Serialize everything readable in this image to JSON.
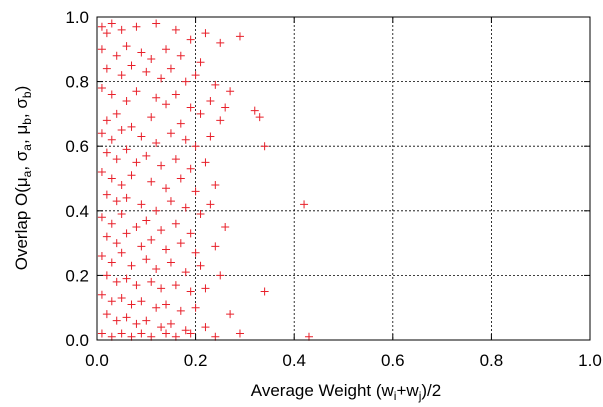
{
  "chart_data": {
    "type": "scatter",
    "title": "",
    "xlabel": {
      "pre": "Average Weight (w",
      "sub1": "i",
      "mid": "+w",
      "sub2": "j",
      "post": ")/2"
    },
    "ylabel": {
      "pre": "Overlap O(",
      "mu": "μ",
      "sub_a": "a",
      "sigma": "σ",
      "sub_b": "b",
      "sep": ", ",
      "post": ")"
    },
    "xlim": [
      0,
      1
    ],
    "ylim": [
      0,
      1
    ],
    "xticks": [
      0.0,
      0.2,
      0.4,
      0.6,
      0.8,
      1.0
    ],
    "yticks": [
      0.0,
      0.2,
      0.4,
      0.6,
      0.8,
      1.0
    ],
    "grid": true,
    "marker": "+",
    "color": "#e8202a",
    "series": [
      {
        "name": "",
        "points": [
          [
            0.01,
            0.97
          ],
          [
            0.02,
            0.95
          ],
          [
            0.03,
            0.98
          ],
          [
            0.05,
            0.96
          ],
          [
            0.08,
            0.97
          ],
          [
            0.12,
            0.98
          ],
          [
            0.16,
            0.96
          ],
          [
            0.19,
            0.93
          ],
          [
            0.22,
            0.95
          ],
          [
            0.25,
            0.92
          ],
          [
            0.29,
            0.94
          ],
          [
            0.01,
            0.9
          ],
          [
            0.04,
            0.88
          ],
          [
            0.06,
            0.91
          ],
          [
            0.09,
            0.89
          ],
          [
            0.11,
            0.87
          ],
          [
            0.14,
            0.9
          ],
          [
            0.17,
            0.88
          ],
          [
            0.21,
            0.86
          ],
          [
            0.02,
            0.84
          ],
          [
            0.05,
            0.82
          ],
          [
            0.07,
            0.85
          ],
          [
            0.1,
            0.83
          ],
          [
            0.13,
            0.81
          ],
          [
            0.15,
            0.84
          ],
          [
            0.18,
            0.8
          ],
          [
            0.2,
            0.82
          ],
          [
            0.24,
            0.79
          ],
          [
            0.27,
            0.77
          ],
          [
            0.01,
            0.78
          ],
          [
            0.03,
            0.76
          ],
          [
            0.06,
            0.74
          ],
          [
            0.08,
            0.77
          ],
          [
            0.12,
            0.75
          ],
          [
            0.14,
            0.73
          ],
          [
            0.16,
            0.76
          ],
          [
            0.19,
            0.72
          ],
          [
            0.23,
            0.74
          ],
          [
            0.26,
            0.72
          ],
          [
            0.32,
            0.71
          ],
          [
            0.33,
            0.69
          ],
          [
            0.25,
            0.68
          ],
          [
            0.21,
            0.7
          ],
          [
            0.17,
            0.67
          ],
          [
            0.11,
            0.69
          ],
          [
            0.07,
            0.66
          ],
          [
            0.04,
            0.7
          ],
          [
            0.02,
            0.68
          ],
          [
            0.01,
            0.64
          ],
          [
            0.03,
            0.62
          ],
          [
            0.05,
            0.65
          ],
          [
            0.09,
            0.63
          ],
          [
            0.12,
            0.61
          ],
          [
            0.15,
            0.64
          ],
          [
            0.18,
            0.62
          ],
          [
            0.2,
            0.6
          ],
          [
            0.23,
            0.63
          ],
          [
            0.34,
            0.6
          ],
          [
            0.02,
            0.58
          ],
          [
            0.04,
            0.56
          ],
          [
            0.06,
            0.59
          ],
          [
            0.08,
            0.55
          ],
          [
            0.1,
            0.57
          ],
          [
            0.13,
            0.54
          ],
          [
            0.16,
            0.56
          ],
          [
            0.19,
            0.53
          ],
          [
            0.22,
            0.55
          ],
          [
            0.01,
            0.52
          ],
          [
            0.03,
            0.5
          ],
          [
            0.05,
            0.48
          ],
          [
            0.07,
            0.51
          ],
          [
            0.11,
            0.49
          ],
          [
            0.14,
            0.47
          ],
          [
            0.17,
            0.5
          ],
          [
            0.2,
            0.46
          ],
          [
            0.24,
            0.48
          ],
          [
            0.02,
            0.45
          ],
          [
            0.04,
            0.43
          ],
          [
            0.06,
            0.44
          ],
          [
            0.09,
            0.42
          ],
          [
            0.12,
            0.4
          ],
          [
            0.15,
            0.43
          ],
          [
            0.18,
            0.41
          ],
          [
            0.21,
            0.39
          ],
          [
            0.23,
            0.42
          ],
          [
            0.42,
            0.42
          ],
          [
            0.01,
            0.38
          ],
          [
            0.03,
            0.36
          ],
          [
            0.05,
            0.39
          ],
          [
            0.08,
            0.35
          ],
          [
            0.1,
            0.37
          ],
          [
            0.13,
            0.34
          ],
          [
            0.16,
            0.36
          ],
          [
            0.19,
            0.33
          ],
          [
            0.26,
            0.35
          ],
          [
            0.02,
            0.32
          ],
          [
            0.04,
            0.3
          ],
          [
            0.06,
            0.33
          ],
          [
            0.09,
            0.29
          ],
          [
            0.11,
            0.31
          ],
          [
            0.14,
            0.28
          ],
          [
            0.17,
            0.3
          ],
          [
            0.2,
            0.27
          ],
          [
            0.24,
            0.29
          ],
          [
            0.01,
            0.26
          ],
          [
            0.03,
            0.24
          ],
          [
            0.05,
            0.27
          ],
          [
            0.07,
            0.23
          ],
          [
            0.1,
            0.25
          ],
          [
            0.12,
            0.22
          ],
          [
            0.15,
            0.24
          ],
          [
            0.18,
            0.21
          ],
          [
            0.21,
            0.23
          ],
          [
            0.25,
            0.2
          ],
          [
            0.02,
            0.2
          ],
          [
            0.04,
            0.18
          ],
          [
            0.06,
            0.19
          ],
          [
            0.08,
            0.17
          ],
          [
            0.11,
            0.18
          ],
          [
            0.13,
            0.16
          ],
          [
            0.16,
            0.17
          ],
          [
            0.19,
            0.15
          ],
          [
            0.22,
            0.16
          ],
          [
            0.34,
            0.15
          ],
          [
            0.01,
            0.14
          ],
          [
            0.03,
            0.12
          ],
          [
            0.05,
            0.13
          ],
          [
            0.07,
            0.11
          ],
          [
            0.09,
            0.12
          ],
          [
            0.12,
            0.1
          ],
          [
            0.14,
            0.11
          ],
          [
            0.17,
            0.09
          ],
          [
            0.2,
            0.1
          ],
          [
            0.27,
            0.08
          ],
          [
            0.02,
            0.08
          ],
          [
            0.04,
            0.06
          ],
          [
            0.06,
            0.07
          ],
          [
            0.08,
            0.05
          ],
          [
            0.1,
            0.06
          ],
          [
            0.13,
            0.04
          ],
          [
            0.15,
            0.05
          ],
          [
            0.18,
            0.03
          ],
          [
            0.22,
            0.04
          ],
          [
            0.29,
            0.02
          ],
          [
            0.01,
            0.02
          ],
          [
            0.03,
            0.01
          ],
          [
            0.05,
            0.02
          ],
          [
            0.07,
            0.01
          ],
          [
            0.09,
            0.02
          ],
          [
            0.11,
            0.01
          ],
          [
            0.14,
            0.02
          ],
          [
            0.16,
            0.01
          ],
          [
            0.19,
            0.02
          ],
          [
            0.24,
            0.01
          ],
          [
            0.43,
            0.01
          ]
        ]
      }
    ]
  }
}
